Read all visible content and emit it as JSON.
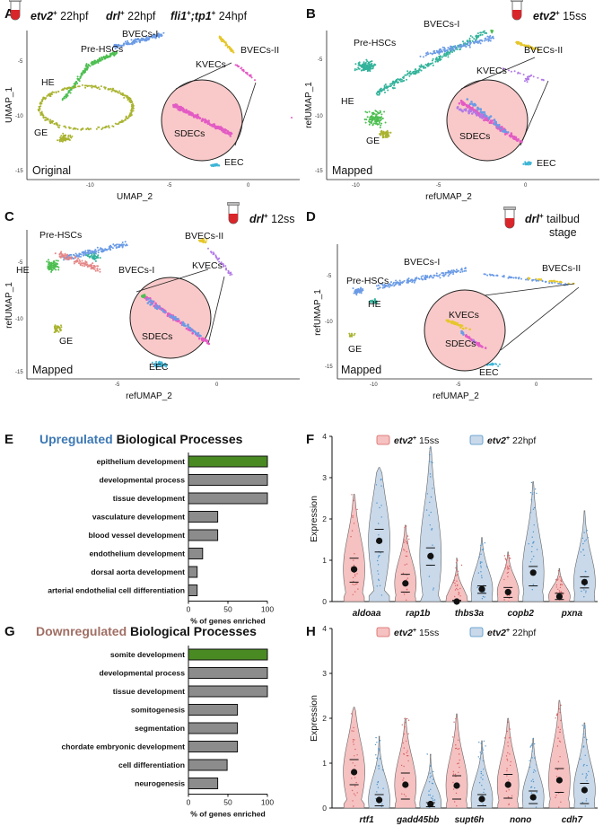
{
  "panels": {
    "A": {
      "letter": "A",
      "hdr1_gene": "etv2",
      "hdr1_sup": "+",
      "hdr1_stage": " 22hpf",
      "hdr2_gene": "drl",
      "hdr2_sup": "+",
      "hdr2_stage": " 22hpf",
      "hdr3_gene": "fli1",
      "hdr3_sup": "+",
      "hdr3_mid": ";",
      "hdr3_gene2": "tp1",
      "hdr3_sup2": "+",
      "hdr3_stage": " 24hpf",
      "xlabel": "UMAP_2",
      "ylabel": "UMAP_1",
      "corner": "Original",
      "xticks": [
        "-10",
        "-5",
        "0"
      ],
      "yticks": [
        "-5",
        "-10",
        "-15"
      ],
      "clusters": [
        "BVECs-I",
        "Pre-HSCs",
        "BVECs-II",
        "KVECs",
        "HE",
        "SDECs",
        "GE",
        "EEC"
      ]
    },
    "B": {
      "letter": "B",
      "gene": "etv2",
      "sup": "+",
      "stage": " 15ss",
      "xlabel": "refUMAP_2",
      "ylabel": "refUMAP_1",
      "corner": "Mapped",
      "xticks": [
        "-10",
        "-5",
        "0"
      ],
      "yticks": [
        "-5",
        "-10",
        "-15"
      ],
      "clusters": [
        "BVECs-I",
        "Pre-HSCs",
        "BVECs-II",
        "KVECs",
        "HE",
        "SDECs",
        "GE",
        "EEC"
      ]
    },
    "C": {
      "letter": "C",
      "gene": "drl",
      "sup": "+",
      "stage": " 12ss",
      "xlabel": "refUMAP_2",
      "ylabel": "refUMAP_1",
      "corner": "Mapped",
      "xticks": [
        "-5",
        "0"
      ],
      "yticks": [
        "-5",
        "-10",
        "-15"
      ],
      "clusters": [
        "Pre-HSCs",
        "BVECs-II",
        "HE",
        "BVECs-I",
        "KVECs",
        "SDECs",
        "GE",
        "EEC"
      ]
    },
    "D": {
      "letter": "D",
      "gene": "drl",
      "sup": "+",
      "stage": " tailbud",
      "stage2": "stage",
      "xlabel": "refUMAP_2",
      "ylabel": "refUMAP_1",
      "corner": "Mapped",
      "xticks": [
        "-10",
        "-5",
        "0"
      ],
      "yticks": [
        "-5",
        "-10",
        "-15"
      ],
      "clusters": [
        "BVECs-I",
        "Pre-HSCs",
        "BVECs-II",
        "HE",
        "KVECs",
        "SDECs",
        "GE",
        "EEC"
      ]
    },
    "E": {
      "letter": "E"
    },
    "F": {
      "letter": "F"
    },
    "G": {
      "letter": "G"
    },
    "H": {
      "letter": "H"
    }
  },
  "colors": {
    "pink": "#e35bc4",
    "blue": "#6b9be6",
    "yellow": "#e6c62a",
    "purple": "#b27ae6",
    "teal": "#33b39b",
    "green": "#4cbf50",
    "olive": "#a9b32f",
    "cyan": "#3eb5d6",
    "salmon": "#e58787",
    "up_title": "#3c78b4",
    "down_title": "#a06e64",
    "bar_green": "#4a8a23",
    "bar_grey": "#8c8c8c",
    "violin_red": "#f6c1c1",
    "violin_blue": "#c9d9ea",
    "jitter_red": "#d76363",
    "jitter_blue": "#4d92c9"
  },
  "chart_data": [
    {
      "type": "bar",
      "orientation": "horizontal",
      "title_colored": "Upregulated",
      "title_rest": " Biological Processes",
      "categories": [
        "epithelium development",
        "developmental process",
        "tissue development",
        "vasculature development",
        "blood vessel development",
        "endothelium development",
        "dorsal aorta development",
        "arterial endothelial cell differentiation"
      ],
      "values": [
        100,
        100,
        100,
        37,
        37,
        18,
        11,
        11
      ],
      "highlight": [
        true,
        false,
        false,
        false,
        false,
        false,
        false,
        false
      ],
      "xlabel": "% of genes enriched",
      "xlim": [
        0,
        100
      ],
      "xticks": [
        "0",
        "50",
        "100"
      ]
    },
    {
      "type": "bar",
      "orientation": "horizontal",
      "title_colored": "Downregulated",
      "title_rest": " Biological Processes",
      "categories": [
        "somite development",
        "developmental process",
        "tissue development",
        "somitogenesis",
        "segmentation",
        "chordate embryonic development",
        "cell differentiation",
        "neurogenesis"
      ],
      "values": [
        100,
        100,
        100,
        62,
        62,
        62,
        49,
        37
      ],
      "highlight": [
        true,
        false,
        false,
        false,
        false,
        false,
        false,
        false
      ],
      "xlabel": "% of genes enriched",
      "xlim": [
        0,
        100
      ],
      "xticks": [
        "0",
        "50",
        "100"
      ]
    },
    {
      "type": "violin",
      "legend": [
        {
          "gene": "etv2",
          "sup": "+",
          "stage": " 15ss"
        },
        {
          "gene": "etv2",
          "sup": "+",
          "stage": " 22hpf"
        }
      ],
      "genes": [
        "aldoaa",
        "rap1b",
        "thbs3a",
        "copb2",
        "pxna"
      ],
      "series": [
        {
          "name": "etv2+ 15ss",
          "mean": [
            0.78,
            0.44,
            0.0,
            0.23,
            0.12
          ],
          "q1": [
            0.47,
            0.23,
            0.0,
            0.1,
            0.05
          ],
          "q3": [
            1.05,
            0.66,
            0.03,
            0.34,
            0.2
          ],
          "max": [
            2.6,
            1.85,
            1.05,
            1.2,
            0.8
          ]
        },
        {
          "name": "etv2+ 22hpf",
          "mean": [
            1.47,
            1.1,
            0.3,
            0.7,
            0.47
          ],
          "q1": [
            1.2,
            0.88,
            0.2,
            0.38,
            0.33
          ],
          "q3": [
            1.75,
            1.3,
            0.38,
            0.85,
            0.6
          ],
          "max": [
            3.25,
            3.75,
            1.55,
            2.9,
            2.2
          ]
        }
      ],
      "ylabel": "Expression",
      "ylim": [
        0,
        4
      ],
      "yticks": [
        "0",
        "1",
        "2",
        "3",
        "4"
      ]
    },
    {
      "type": "violin",
      "legend": [
        {
          "gene": "etv2",
          "sup": "+",
          "stage": " 15ss"
        },
        {
          "gene": "etv2",
          "sup": "+",
          "stage": " 22hpf"
        }
      ],
      "genes": [
        "rtf1",
        "gadd45bb",
        "supt6h",
        "nono",
        "cdh7"
      ],
      "series": [
        {
          "name": "etv2+ 15ss",
          "mean": [
            0.8,
            0.52,
            0.5,
            0.52,
            0.62
          ],
          "q1": [
            0.52,
            0.2,
            0.2,
            0.22,
            0.35
          ],
          "q3": [
            1.08,
            0.78,
            0.72,
            0.75,
            0.88
          ],
          "max": [
            2.25,
            2.0,
            2.1,
            2.0,
            2.4
          ]
        },
        {
          "name": "etv2+ 22hpf",
          "mean": [
            0.18,
            0.09,
            0.2,
            0.24,
            0.4
          ],
          "q1": [
            0.05,
            0.03,
            0.05,
            0.1,
            0.1
          ],
          "q3": [
            0.3,
            0.12,
            0.3,
            0.38,
            0.55
          ],
          "max": [
            1.6,
            1.2,
            1.5,
            1.55,
            1.9
          ]
        }
      ],
      "ylabel": "Expression",
      "ylim": [
        0,
        4
      ],
      "yticks": [
        "0",
        "1",
        "2",
        "3",
        "4"
      ]
    }
  ]
}
